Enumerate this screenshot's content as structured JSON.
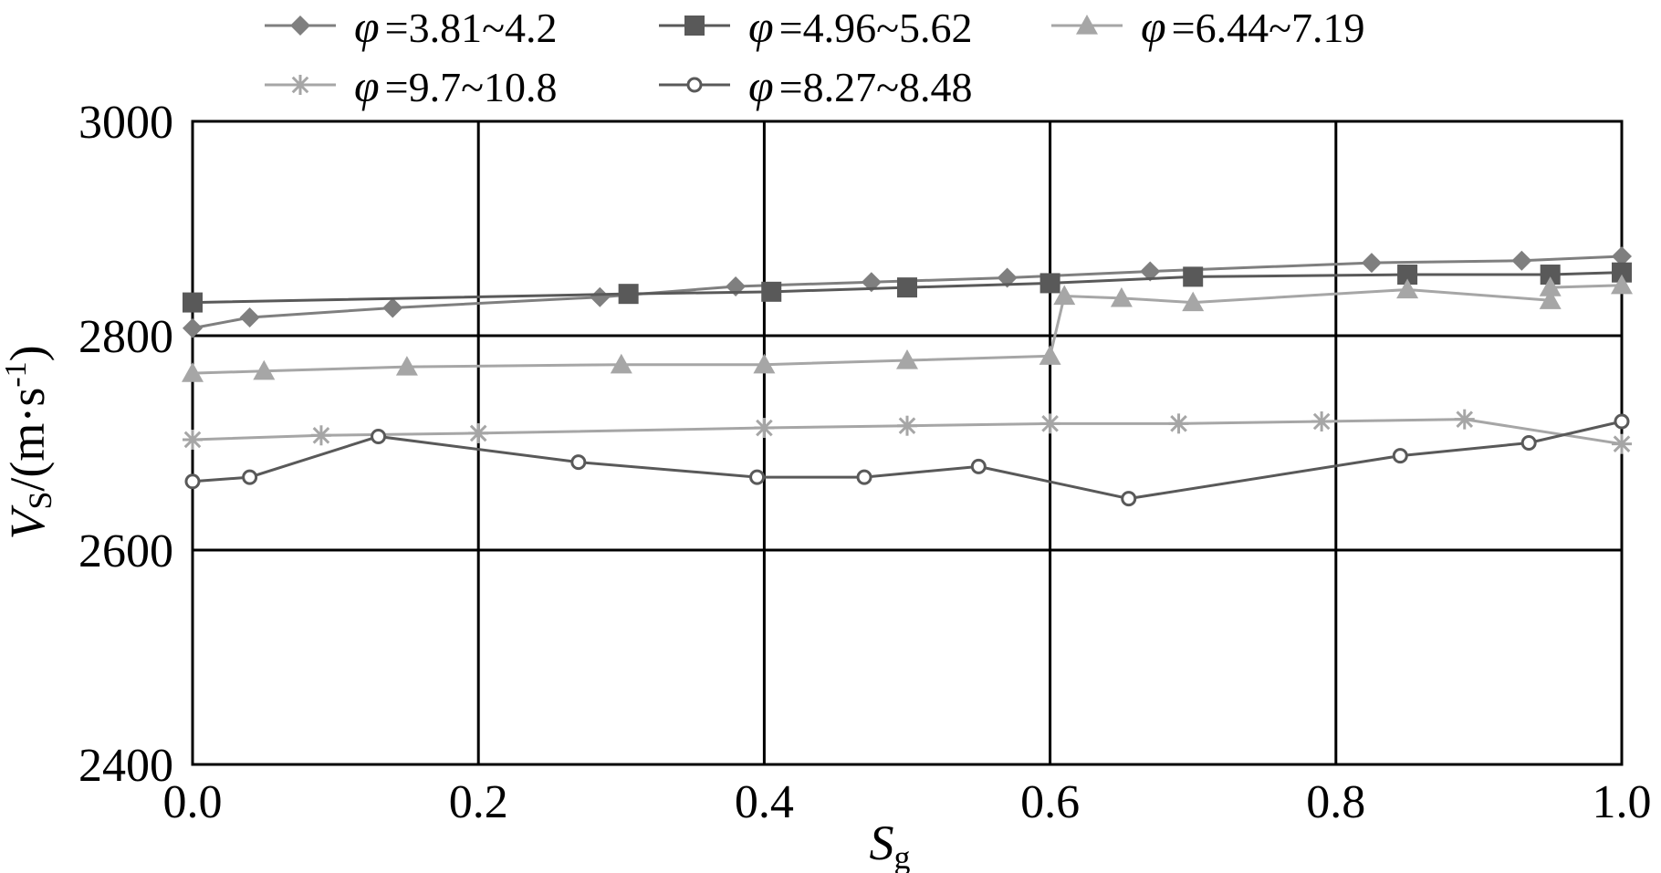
{
  "chart_data": {
    "type": "line",
    "xlabel": {
      "main": "S",
      "sub": "g"
    },
    "ylabel": {
      "main": "V",
      "sub": "S",
      "rest": "/(m·s",
      "sup": "-1",
      "close": ")"
    },
    "xlim": [
      0,
      1
    ],
    "ylim": [
      2400,
      3000
    ],
    "xticks": [
      "0.0",
      "0.2",
      "0.4",
      "0.6",
      "0.8",
      "1.0"
    ],
    "yticks": [
      "2400",
      "2600",
      "2800",
      "3000"
    ],
    "grid": true,
    "legend_position": "top",
    "series": [
      {
        "symbol": "φ",
        "range": "=3.81~4.2",
        "marker": "diamond",
        "color": "#7f7f7f",
        "points": [
          [
            0.0,
            2807
          ],
          [
            0.04,
            2817
          ],
          [
            0.14,
            2826
          ],
          [
            0.285,
            2836
          ],
          [
            0.38,
            2846
          ],
          [
            0.475,
            2850
          ],
          [
            0.57,
            2854
          ],
          [
            0.67,
            2860
          ],
          [
            0.825,
            2868
          ],
          [
            0.93,
            2870
          ],
          [
            1.0,
            2874
          ]
        ]
      },
      {
        "symbol": "φ",
        "range": "=4.96~5.62",
        "marker": "square",
        "color": "#595959",
        "points": [
          [
            0.0,
            2831
          ],
          [
            0.305,
            2839
          ],
          [
            0.405,
            2841
          ],
          [
            0.5,
            2845
          ],
          [
            0.6,
            2849
          ],
          [
            0.7,
            2855
          ],
          [
            0.85,
            2857
          ],
          [
            0.95,
            2857
          ],
          [
            1.0,
            2859
          ]
        ]
      },
      {
        "symbol": "φ",
        "range": "=6.44~7.19",
        "marker": "triangle",
        "color": "#a6a6a6",
        "points": [
          [
            0.0,
            2765
          ],
          [
            0.05,
            2767
          ],
          [
            0.15,
            2771
          ],
          [
            0.3,
            2773
          ],
          [
            0.4,
            2773
          ],
          [
            0.5,
            2777
          ],
          [
            0.6,
            2781
          ],
          [
            0.61,
            2837
          ],
          [
            0.65,
            2835
          ],
          [
            0.7,
            2831
          ],
          [
            0.85,
            2843
          ],
          [
            0.95,
            2833
          ],
          [
            0.95,
            2845
          ],
          [
            1.0,
            2847
          ]
        ]
      },
      {
        "symbol": "φ",
        "range": "=9.7~10.8",
        "marker": "star",
        "color": "#a6a6a6",
        "points": [
          [
            0.0,
            2703
          ],
          [
            0.09,
            2707
          ],
          [
            0.2,
            2709
          ],
          [
            0.4,
            2714
          ],
          [
            0.5,
            2716
          ],
          [
            0.6,
            2718
          ],
          [
            0.69,
            2718
          ],
          [
            0.79,
            2720
          ],
          [
            0.89,
            2722
          ],
          [
            1.0,
            2699
          ]
        ]
      },
      {
        "symbol": "φ",
        "range": "=8.27~8.48",
        "marker": "circle",
        "color": "#595959",
        "points": [
          [
            0.0,
            2664
          ],
          [
            0.04,
            2668
          ],
          [
            0.13,
            2706
          ],
          [
            0.27,
            2682
          ],
          [
            0.395,
            2668
          ],
          [
            0.47,
            2668
          ],
          [
            0.55,
            2678
          ],
          [
            0.655,
            2648
          ],
          [
            0.845,
            2688
          ],
          [
            0.935,
            2700
          ],
          [
            1.0,
            2720
          ]
        ]
      }
    ]
  }
}
